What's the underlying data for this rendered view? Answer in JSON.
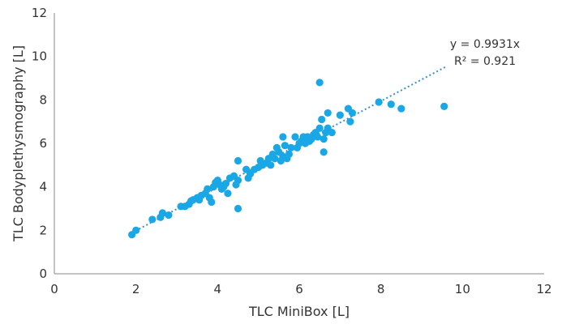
{
  "chart_data": {
    "type": "scatter",
    "xlabel": "TLC MiniBox [L]",
    "ylabel": "TLC Bodyplethysmography [L]",
    "xlim": [
      0,
      12
    ],
    "ylim": [
      0,
      12
    ],
    "xticks": [
      "0",
      "2",
      "4",
      "6",
      "8",
      "10",
      "12"
    ],
    "yticks": [
      "0",
      "2",
      "4",
      "6",
      "8",
      "10",
      "12"
    ],
    "grid": false,
    "point_color": "#1aa7e6",
    "trendline": {
      "slope": 0.9931,
      "x_range": [
        1.9,
        9.6
      ],
      "color": "#3a8fc9",
      "equation": "y = 0.9931x",
      "r_squared": "R² = 0.921"
    },
    "points": [
      [
        1.9,
        1.8
      ],
      [
        2.0,
        2.0
      ],
      [
        2.4,
        2.5
      ],
      [
        2.6,
        2.6
      ],
      [
        2.65,
        2.8
      ],
      [
        2.8,
        2.7
      ],
      [
        3.1,
        3.1
      ],
      [
        3.2,
        3.1
      ],
      [
        3.3,
        3.2
      ],
      [
        3.35,
        3.35
      ],
      [
        3.4,
        3.4
      ],
      [
        3.5,
        3.5
      ],
      [
        3.55,
        3.4
      ],
      [
        3.6,
        3.6
      ],
      [
        3.7,
        3.7
      ],
      [
        3.75,
        3.9
      ],
      [
        3.8,
        3.5
      ],
      [
        3.85,
        3.3
      ],
      [
        3.9,
        4.0
      ],
      [
        3.95,
        4.2
      ],
      [
        4.0,
        4.3
      ],
      [
        4.05,
        4.1
      ],
      [
        4.1,
        3.9
      ],
      [
        4.15,
        4.0
      ],
      [
        4.2,
        4.15
      ],
      [
        4.25,
        3.7
      ],
      [
        4.3,
        4.4
      ],
      [
        4.4,
        4.5
      ],
      [
        4.45,
        4.1
      ],
      [
        4.5,
        4.3
      ],
      [
        4.5,
        5.2
      ],
      [
        4.5,
        3.0
      ],
      [
        4.7,
        4.8
      ],
      [
        4.75,
        4.4
      ],
      [
        4.8,
        4.6
      ],
      [
        4.9,
        4.8
      ],
      [
        5.0,
        4.9
      ],
      [
        5.05,
        5.2
      ],
      [
        5.1,
        5.0
      ],
      [
        5.2,
        5.1
      ],
      [
        5.25,
        5.3
      ],
      [
        5.3,
        5.0
      ],
      [
        5.35,
        5.5
      ],
      [
        5.4,
        5.3
      ],
      [
        5.45,
        5.8
      ],
      [
        5.5,
        5.6
      ],
      [
        5.55,
        5.2
      ],
      [
        5.6,
        5.4
      ],
      [
        5.6,
        6.3
      ],
      [
        5.65,
        5.9
      ],
      [
        5.7,
        5.3
      ],
      [
        5.75,
        5.5
      ],
      [
        5.8,
        5.8
      ],
      [
        5.9,
        6.3
      ],
      [
        5.95,
        5.8
      ],
      [
        6.0,
        6.0
      ],
      [
        6.05,
        6.1
      ],
      [
        6.1,
        6.3
      ],
      [
        6.15,
        6.0
      ],
      [
        6.2,
        6.3
      ],
      [
        6.25,
        6.1
      ],
      [
        6.3,
        6.2
      ],
      [
        6.35,
        6.4
      ],
      [
        6.4,
        6.5
      ],
      [
        6.45,
        6.3
      ],
      [
        6.5,
        6.7
      ],
      [
        6.55,
        7.1
      ],
      [
        6.6,
        6.2
      ],
      [
        6.6,
        5.6
      ],
      [
        6.65,
        6.5
      ],
      [
        6.7,
        6.7
      ],
      [
        6.7,
        7.4
      ],
      [
        6.8,
        6.5
      ],
      [
        6.5,
        8.8
      ],
      [
        7.0,
        7.3
      ],
      [
        7.2,
        7.6
      ],
      [
        7.25,
        7.0
      ],
      [
        7.3,
        7.4
      ],
      [
        7.95,
        7.9
      ],
      [
        8.25,
        7.8
      ],
      [
        8.5,
        7.6
      ],
      [
        9.55,
        7.7
      ]
    ]
  }
}
